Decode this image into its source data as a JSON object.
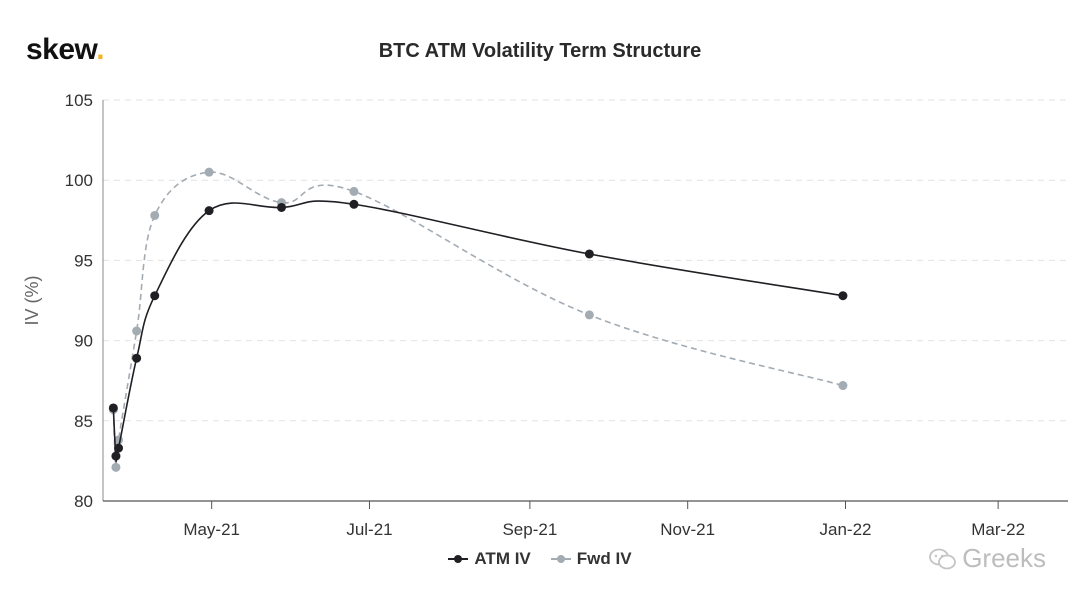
{
  "brand": {
    "name": "skew",
    "dot": "."
  },
  "watermark": {
    "text": "Greeks"
  },
  "chart_data": {
    "type": "line",
    "title": "BTC ATM Volatility Term Structure",
    "ylabel": "IV (%)",
    "xlabel": "",
    "ylim": [
      80,
      105
    ],
    "yticks": [
      80,
      85,
      90,
      95,
      100,
      105
    ],
    "xlim": [
      "2021-03-20",
      "2022-03-28"
    ],
    "xticks": [
      {
        "date": "2021-05-01",
        "label": "May-21"
      },
      {
        "date": "2021-07-01",
        "label": "Jul-21"
      },
      {
        "date": "2021-09-01",
        "label": "Sep-21"
      },
      {
        "date": "2021-11-01",
        "label": "Nov-21"
      },
      {
        "date": "2022-01-01",
        "label": "Jan-22"
      },
      {
        "date": "2022-03-01",
        "label": "Mar-22"
      }
    ],
    "grid": true,
    "legend_position": "bottom-center",
    "series": [
      {
        "name": "ATM IV",
        "color": "#1f1f24",
        "style": "solid",
        "points": [
          {
            "x": "2021-03-24",
            "y": 85.8
          },
          {
            "x": "2021-03-25",
            "y": 82.8
          },
          {
            "x": "2021-03-26",
            "y": 83.3
          },
          {
            "x": "2021-04-02",
            "y": 88.9
          },
          {
            "x": "2021-04-09",
            "y": 92.8
          },
          {
            "x": "2021-04-30",
            "y": 98.1
          },
          {
            "x": "2021-05-28",
            "y": 98.3
          },
          {
            "x": "2021-06-25",
            "y": 98.5
          },
          {
            "x": "2021-09-24",
            "y": 95.4
          },
          {
            "x": "2021-12-31",
            "y": 92.8
          }
        ]
      },
      {
        "name": "Fwd IV",
        "color": "#a3abb3",
        "style": "dashed",
        "points": [
          {
            "x": "2021-03-24",
            "y": 85.7
          },
          {
            "x": "2021-03-25",
            "y": 82.1
          },
          {
            "x": "2021-03-26",
            "y": 83.8
          },
          {
            "x": "2021-04-02",
            "y": 90.6
          },
          {
            "x": "2021-04-09",
            "y": 97.8
          },
          {
            "x": "2021-04-30",
            "y": 100.5
          },
          {
            "x": "2021-05-28",
            "y": 98.6
          },
          {
            "x": "2021-06-25",
            "y": 99.3
          },
          {
            "x": "2021-09-24",
            "y": 91.6
          },
          {
            "x": "2021-12-31",
            "y": 87.2
          }
        ]
      }
    ]
  }
}
